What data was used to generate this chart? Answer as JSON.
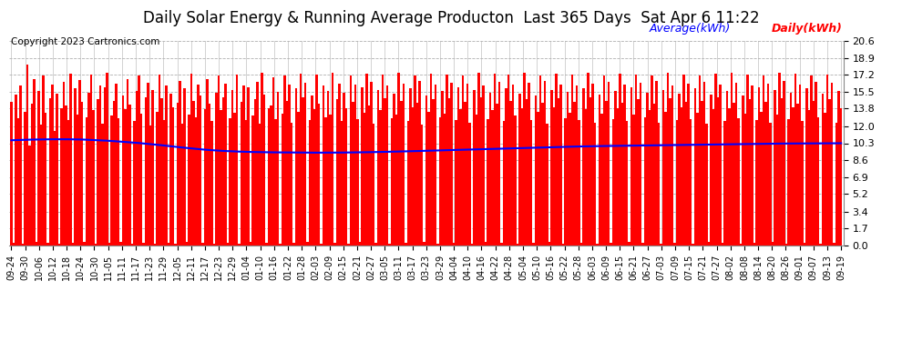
{
  "title": "Daily Solar Energy & Running Average Producton  Last 365 Days  Sat Apr 6 11:22",
  "copyright": "Copyright 2023 Cartronics.com",
  "legend_avg": "Average(kWh)",
  "legend_daily": "Daily(kWh)",
  "bar_color": "#ff0000",
  "avg_line_color": "#0000ff",
  "background_color": "#ffffff",
  "grid_color": "#b0b0b0",
  "yticks": [
    0.0,
    1.7,
    3.4,
    5.2,
    6.9,
    8.6,
    10.3,
    12.0,
    13.8,
    15.5,
    17.2,
    18.9,
    20.6
  ],
  "ylim": [
    0.0,
    20.6
  ],
  "title_fontsize": 12,
  "axis_fontsize": 8,
  "copyright_fontsize": 7.5,
  "legend_fontsize": 9,
  "xtick_labels": [
    "09-24",
    "09-30",
    "10-06",
    "10-12",
    "10-18",
    "10-24",
    "10-30",
    "11-05",
    "11-11",
    "11-17",
    "11-23",
    "11-29",
    "12-05",
    "12-11",
    "12-17",
    "12-23",
    "12-29",
    "01-04",
    "01-10",
    "01-16",
    "01-22",
    "01-28",
    "02-03",
    "02-09",
    "02-15",
    "02-21",
    "02-27",
    "03-05",
    "03-11",
    "03-17",
    "03-23",
    "03-29",
    "04-04",
    "04-10",
    "04-16",
    "04-22",
    "04-28",
    "05-04",
    "05-10",
    "05-16",
    "05-22",
    "05-28",
    "06-03",
    "06-09",
    "06-15",
    "06-21",
    "06-27",
    "07-03",
    "07-09",
    "07-15",
    "07-21",
    "07-27",
    "08-02",
    "08-08",
    "08-14",
    "08-20",
    "08-26",
    "09-01",
    "09-07",
    "09-13",
    "09-19"
  ],
  "avg_curve_points": [
    10.6,
    10.65,
    10.68,
    10.7,
    10.7,
    10.68,
    10.62,
    10.55,
    10.45,
    10.35,
    10.22,
    10.08,
    9.92,
    9.78,
    9.65,
    9.55,
    9.48,
    9.43,
    9.4,
    9.38,
    9.37,
    9.36,
    9.35,
    9.35,
    9.36,
    9.38,
    9.4,
    9.43,
    9.46,
    9.5,
    9.54,
    9.58,
    9.62,
    9.66,
    9.7,
    9.74,
    9.78,
    9.82,
    9.86,
    9.9,
    9.94,
    9.97,
    10.0,
    10.02,
    10.04,
    10.06,
    10.08,
    10.1,
    10.12,
    10.14,
    10.16,
    10.18,
    10.2,
    10.22,
    10.24,
    10.26,
    10.27,
    10.28,
    10.29,
    10.3,
    10.3
  ],
  "daily_data": [
    14.5,
    0.3,
    15.2,
    12.8,
    16.1,
    0.2,
    13.5,
    18.2,
    10.1,
    14.3,
    16.8,
    0.4,
    15.6,
    12.2,
    17.1,
    13.4,
    0.3,
    14.8,
    16.2,
    11.5,
    15.3,
    0.2,
    13.8,
    16.5,
    14.1,
    12.6,
    17.3,
    0.3,
    15.8,
    13.2,
    16.7,
    14.5,
    0.4,
    12.9,
    15.4,
    17.2,
    13.6,
    0.2,
    14.7,
    16.1,
    12.3,
    15.9,
    17.4,
    0.3,
    13.1,
    14.6,
    16.3,
    12.8,
    0.4,
    15.1,
    13.7,
    16.8,
    14.2,
    0.2,
    12.5,
    15.6,
    17.1,
    13.3,
    0.3,
    14.9,
    16.4,
    12.1,
    15.7,
    0.2,
    13.5,
    17.2,
    14.8,
    12.6,
    16.1,
    0.3,
    15.3,
    13.9,
    0.2,
    14.4,
    16.6,
    12.3,
    15.8,
    0.4,
    13.2,
    17.3,
    14.6,
    12.9,
    16.2,
    15.1,
    0.3,
    13.7,
    16.8,
    14.3,
    12.5,
    0.2,
    15.4,
    17.1,
    13.6,
    14.9,
    16.3,
    0.3,
    12.8,
    15.7,
    13.4,
    17.2,
    0.2,
    14.5,
    16.1,
    12.6,
    15.9,
    0.4,
    13.1,
    14.7,
    16.5,
    12.3,
    17.4,
    15.2,
    0.3,
    13.8,
    14.1,
    16.9,
    12.7,
    15.5,
    0.2,
    13.3,
    17.1,
    14.6,
    16.2,
    12.4,
    0.3,
    15.8,
    13.5,
    17.3,
    14.9,
    16.4,
    0.4,
    12.6,
    15.1,
    13.7,
    17.2,
    14.3,
    0.2,
    16.1,
    12.9,
    15.6,
    13.2,
    17.4,
    0.3,
    14.7,
    16.3,
    12.5,
    15.4,
    13.8,
    0.2,
    17.1,
    14.5,
    16.2,
    12.7,
    0.4,
    15.9,
    13.4,
    17.3,
    14.1,
    16.5,
    12.3,
    0.3,
    15.7,
    13.6,
    17.2,
    14.8,
    16.1,
    0.2,
    12.8,
    15.3,
    13.2,
    17.4,
    14.6,
    16.3,
    0.3,
    12.5,
    15.8,
    13.9,
    17.1,
    14.4,
    16.6,
    12.2,
    0.4,
    15.1,
    13.5,
    17.3,
    14.7,
    16.2,
    0.2,
    12.9,
    15.6,
    13.3,
    17.2,
    14.8,
    16.4,
    0.3,
    12.6,
    15.9,
    13.7,
    17.1,
    14.5,
    16.3,
    12.4,
    0.2,
    15.7,
    13.2,
    17.4,
    14.9,
    16.1,
    0.4,
    12.7,
    15.4,
    13.6,
    17.3,
    14.3,
    16.5,
    0.3,
    12.5,
    15.8,
    17.2,
    14.6,
    16.2,
    13.1,
    0.2,
    15.3,
    13.8,
    17.4,
    14.7,
    16.4,
    12.6,
    0.3,
    15.1,
    13.5,
    17.1,
    14.4,
    16.6,
    12.3,
    0.4,
    15.7,
    13.9,
    17.3,
    14.8,
    16.2,
    0.2,
    12.8,
    15.5,
    13.4,
    17.2,
    14.5,
    16.1,
    12.6,
    0.3,
    15.8,
    13.7,
    17.4,
    14.9,
    16.3,
    12.4,
    0.2,
    15.2,
    13.3,
    17.1,
    14.6,
    16.5,
    0.3,
    12.7,
    15.6,
    13.8,
    17.3,
    14.4,
    16.2,
    12.5,
    0.4,
    15.9,
    13.2,
    17.2,
    14.7,
    16.4,
    0.3,
    12.9,
    15.4,
    13.6,
    17.1,
    14.3,
    16.6,
    12.4,
    0.2,
    15.7,
    13.5,
    17.4,
    14.8,
    16.1,
    0.3,
    12.6,
    15.3,
    13.9,
    17.2,
    14.5,
    16.3,
    12.7,
    0.2,
    15.8,
    13.4,
    17.1,
    14.6,
    16.5,
    12.3,
    0.4,
    15.2,
    13.7,
    17.3,
    14.9,
    16.2,
    0.3,
    12.5,
    15.6,
    13.8,
    17.4,
    14.4,
    16.4,
    12.8,
    0.2,
    15.1,
    13.3,
    17.2,
    14.7,
    16.1,
    0.3,
    12.6,
    15.9,
    13.5,
    17.1,
    14.5,
    16.3,
    12.4,
    0.4,
    15.7,
    13.2,
    17.4,
    14.8,
    16.6,
    0.2,
    12.7,
    15.4,
    13.9,
    17.3,
    14.3,
    16.2,
    12.5,
    0.3,
    15.8,
    13.6,
    17.1,
    14.6,
    16.5,
    12.9,
    0.2,
    15.3,
    13.4,
    17.2,
    14.7,
    16.4,
    0.3,
    12.4,
    15.6,
    13.8,
    17.4,
    14.5
  ]
}
